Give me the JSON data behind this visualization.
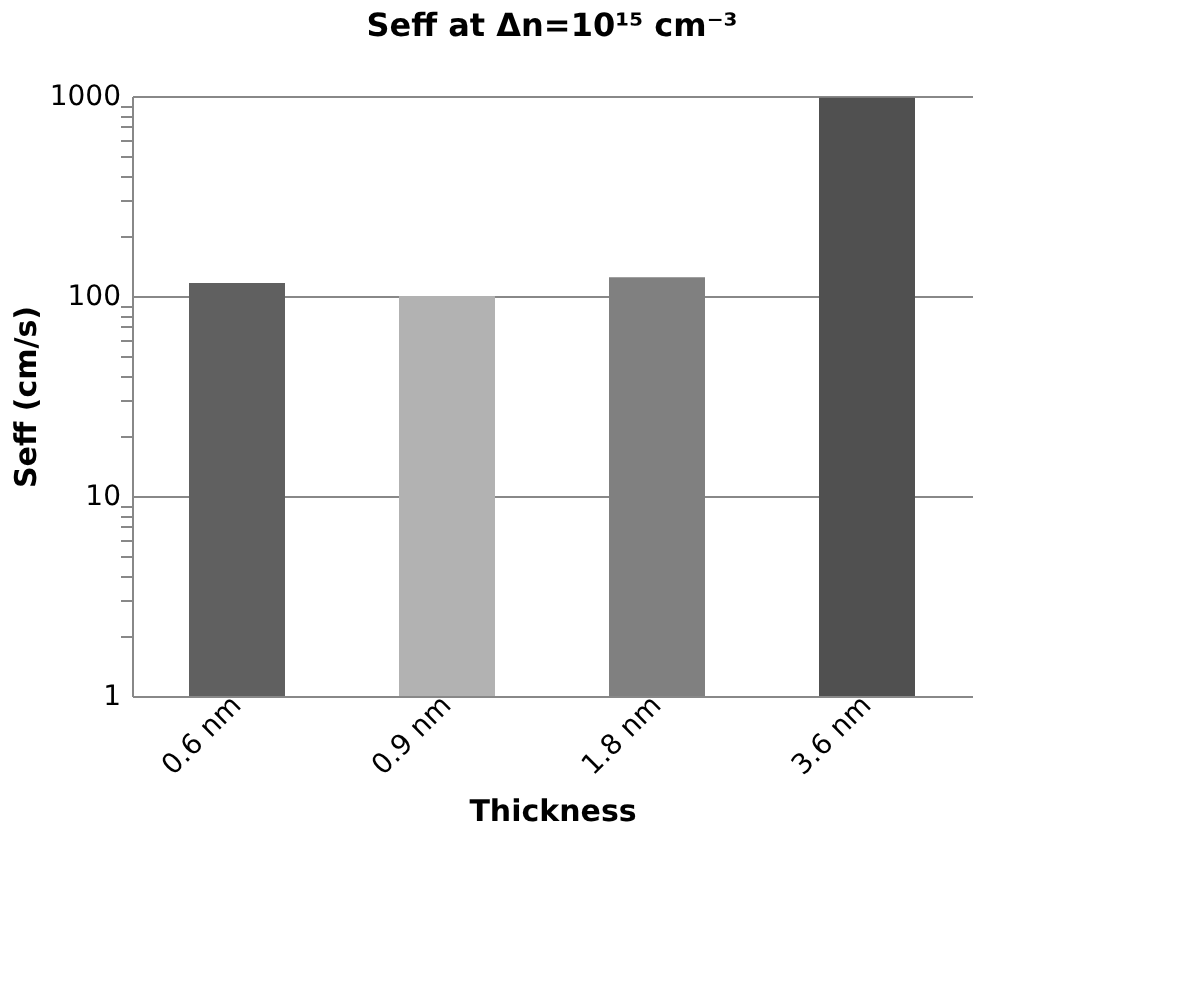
{
  "chart_data": {
    "type": "bar",
    "title": "Seff at Δn=10¹⁵ cm⁻³",
    "xlabel": "Thickness",
    "ylabel": "Seff (cm/s)",
    "categories": [
      "0.6 nm",
      "0.9 nm",
      "1.8 nm",
      "3.6 nm"
    ],
    "values": [
      116,
      100,
      124,
      980
    ],
    "colors": [
      "#606060",
      "#b2b2b2",
      "#808080",
      "#505050"
    ],
    "log": "y",
    "ylim": [
      1,
      1000
    ],
    "yticks": [
      1,
      {
        "value": 2,
        "label": null
      },
      {
        "value": 3,
        "label": null
      },
      {
        "value": 4,
        "label": null
      },
      {
        "value": 5,
        "label": null
      },
      {
        "value": 6,
        "label": null
      },
      {
        "value": 7,
        "label": null
      },
      {
        "value": 8,
        "label": null
      },
      {
        "value": 9,
        "label": null
      },
      10,
      {
        "value": 20,
        "label": null
      },
      {
        "value": 30,
        "label": null
      },
      {
        "value": 40,
        "label": null
      },
      {
        "value": 50,
        "label": null
      },
      {
        "value": 60,
        "label": null
      },
      {
        "value": 70,
        "label": null
      },
      {
        "value": 80,
        "label": null
      },
      {
        "value": 90,
        "label": null
      },
      100,
      {
        "value": 200,
        "label": null
      },
      {
        "value": 300,
        "label": null
      },
      {
        "value": 400,
        "label": null
      },
      {
        "value": 500,
        "label": null
      },
      {
        "value": 600,
        "label": null
      },
      {
        "value": 700,
        "label": null
      },
      {
        "value": 800,
        "label": null
      },
      {
        "value": 900,
        "label": null
      },
      1000
    ],
    "grid": "y"
  }
}
